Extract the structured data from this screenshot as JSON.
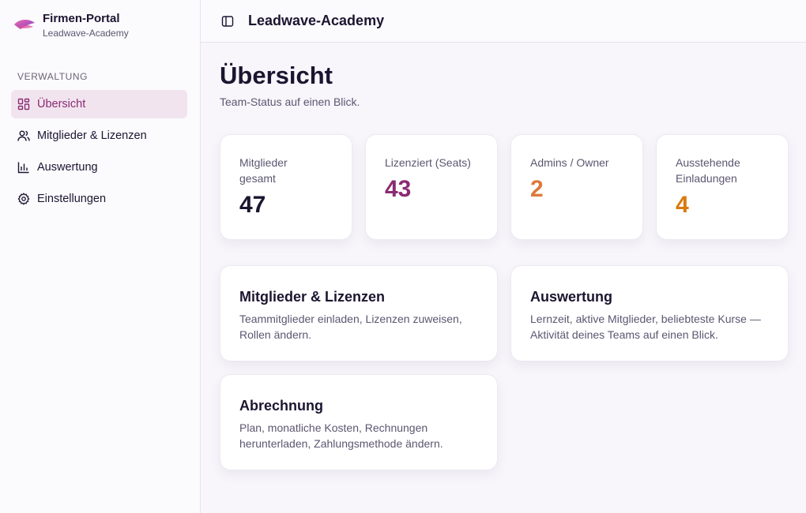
{
  "brand": {
    "title": "Firmen-Portal",
    "subtitle": "Leadwave-Academy"
  },
  "sidebar": {
    "section_label": "VERWALTUNG",
    "items": [
      {
        "label": "Übersicht",
        "icon": "dashboard-icon",
        "active": true
      },
      {
        "label": "Mitglieder & Lizenzen",
        "icon": "users-icon",
        "active": false
      },
      {
        "label": "Auswertung",
        "icon": "bar-chart-icon",
        "active": false
      },
      {
        "label": "Einstellungen",
        "icon": "gear-icon",
        "active": false
      }
    ]
  },
  "topbar": {
    "title": "Leadwave-Academy",
    "toggle_icon": "sidebar-toggle-icon"
  },
  "main": {
    "title": "Übersicht",
    "subtitle": "Team-Status auf einen Blick.",
    "stats": [
      {
        "label": "Mitglieder gesamt",
        "value": "47",
        "color": "#1c1530"
      },
      {
        "label": "Lizenziert (Seats)",
        "value": "43",
        "color": "#8a2b72"
      },
      {
        "label": "Admins / Owner",
        "value": "2",
        "color": "#dd7a3c"
      },
      {
        "label": "Ausstehende Einladungen",
        "value": "4",
        "color": "#d97a0e"
      }
    ],
    "cards": [
      {
        "title": "Mitglieder & Lizenzen",
        "description": "Teammitglieder einladen, Lizenzen zuweisen, Rollen ändern."
      },
      {
        "title": "Auswertung",
        "description": "Lernzeit, aktive Mitglieder, beliebteste Kurse — Aktivität deines Teams auf einen Blick."
      },
      {
        "title": "Abrechnung",
        "description": "Plan, monatliche Kosten, Rechnungen herunterladen, Zahlungsmethode ändern."
      }
    ]
  },
  "colors": {
    "accent": "#8a2b72",
    "active_bg": "#f1e4ef"
  }
}
